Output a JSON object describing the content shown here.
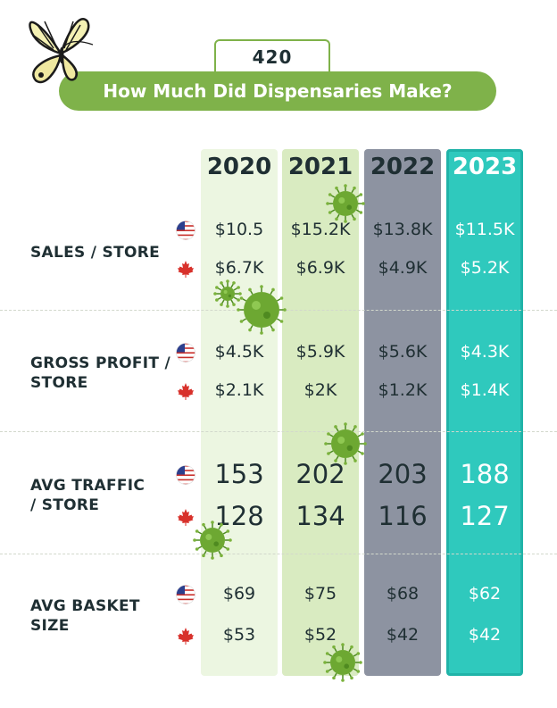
{
  "badge": "420",
  "title": "How Much Did Dispensaries Make?",
  "colors": {
    "col2020": "#ecf6e1",
    "col2021": "#d9ebc1",
    "col2022": "#8d93a1",
    "col2023": "#2fc9bd",
    "accent": "#7fb24a"
  },
  "icons": {
    "us": "us-flag-icon",
    "ca": "maple-leaf-icon",
    "decor": [
      "butterfly-icon",
      "virus-icon"
    ]
  },
  "chart_data": {
    "type": "table",
    "columns": [
      "2020",
      "2021",
      "2022",
      "2023"
    ],
    "rows": [
      {
        "metric": "SALES / STORE",
        "us": [
          "$10.5",
          "$15.2K",
          "$13.8K",
          "$11.5K"
        ],
        "ca": [
          "$6.7K",
          "$6.9K",
          "$4.9K",
          "$5.2K"
        ]
      },
      {
        "metric": "GROSS PROFIT / STORE",
        "us": [
          "$4.5K",
          "$5.9K",
          "$5.6K",
          "$4.3K"
        ],
        "ca": [
          "$2.1K",
          "$2K",
          "$1.2K",
          "$1.4K"
        ]
      },
      {
        "metric": "AVG TRAFFIC / STORE",
        "us": [
          "153",
          "202",
          "203",
          "188"
        ],
        "ca": [
          "128",
          "134",
          "116",
          "127"
        ]
      },
      {
        "metric": "AVG BASKET SIZE",
        "us": [
          "$69",
          "$75",
          "$68",
          "$62"
        ],
        "ca": [
          "$53",
          "$52",
          "$42",
          "$42"
        ]
      }
    ]
  }
}
